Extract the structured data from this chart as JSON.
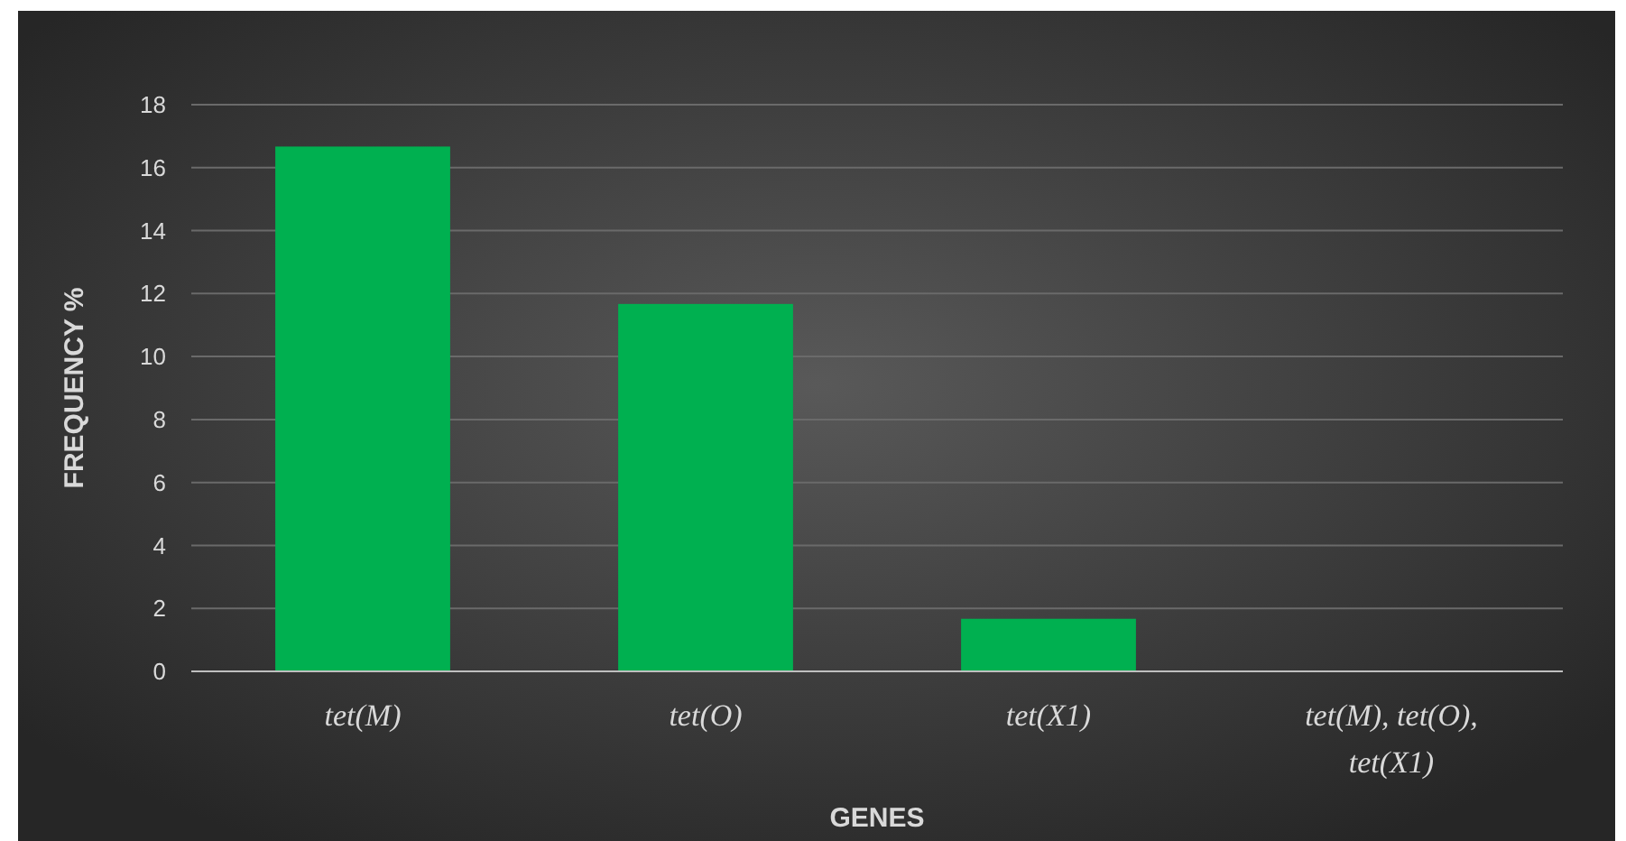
{
  "chart_data": {
    "type": "bar",
    "xlabel": "GENES",
    "ylabel": "FREQUENCY %",
    "categories": [
      "tet(M)",
      "tet(O)",
      "tet(X1)",
      "tet(M), tet(O), tet(X1)"
    ],
    "values": [
      16.67,
      11.67,
      1.67,
      0
    ],
    "color": "#00b050",
    "ylim": [
      0,
      18
    ],
    "yticks": [
      0,
      2,
      4,
      6,
      8,
      10,
      12,
      14,
      16,
      18
    ],
    "grid": "y"
  }
}
